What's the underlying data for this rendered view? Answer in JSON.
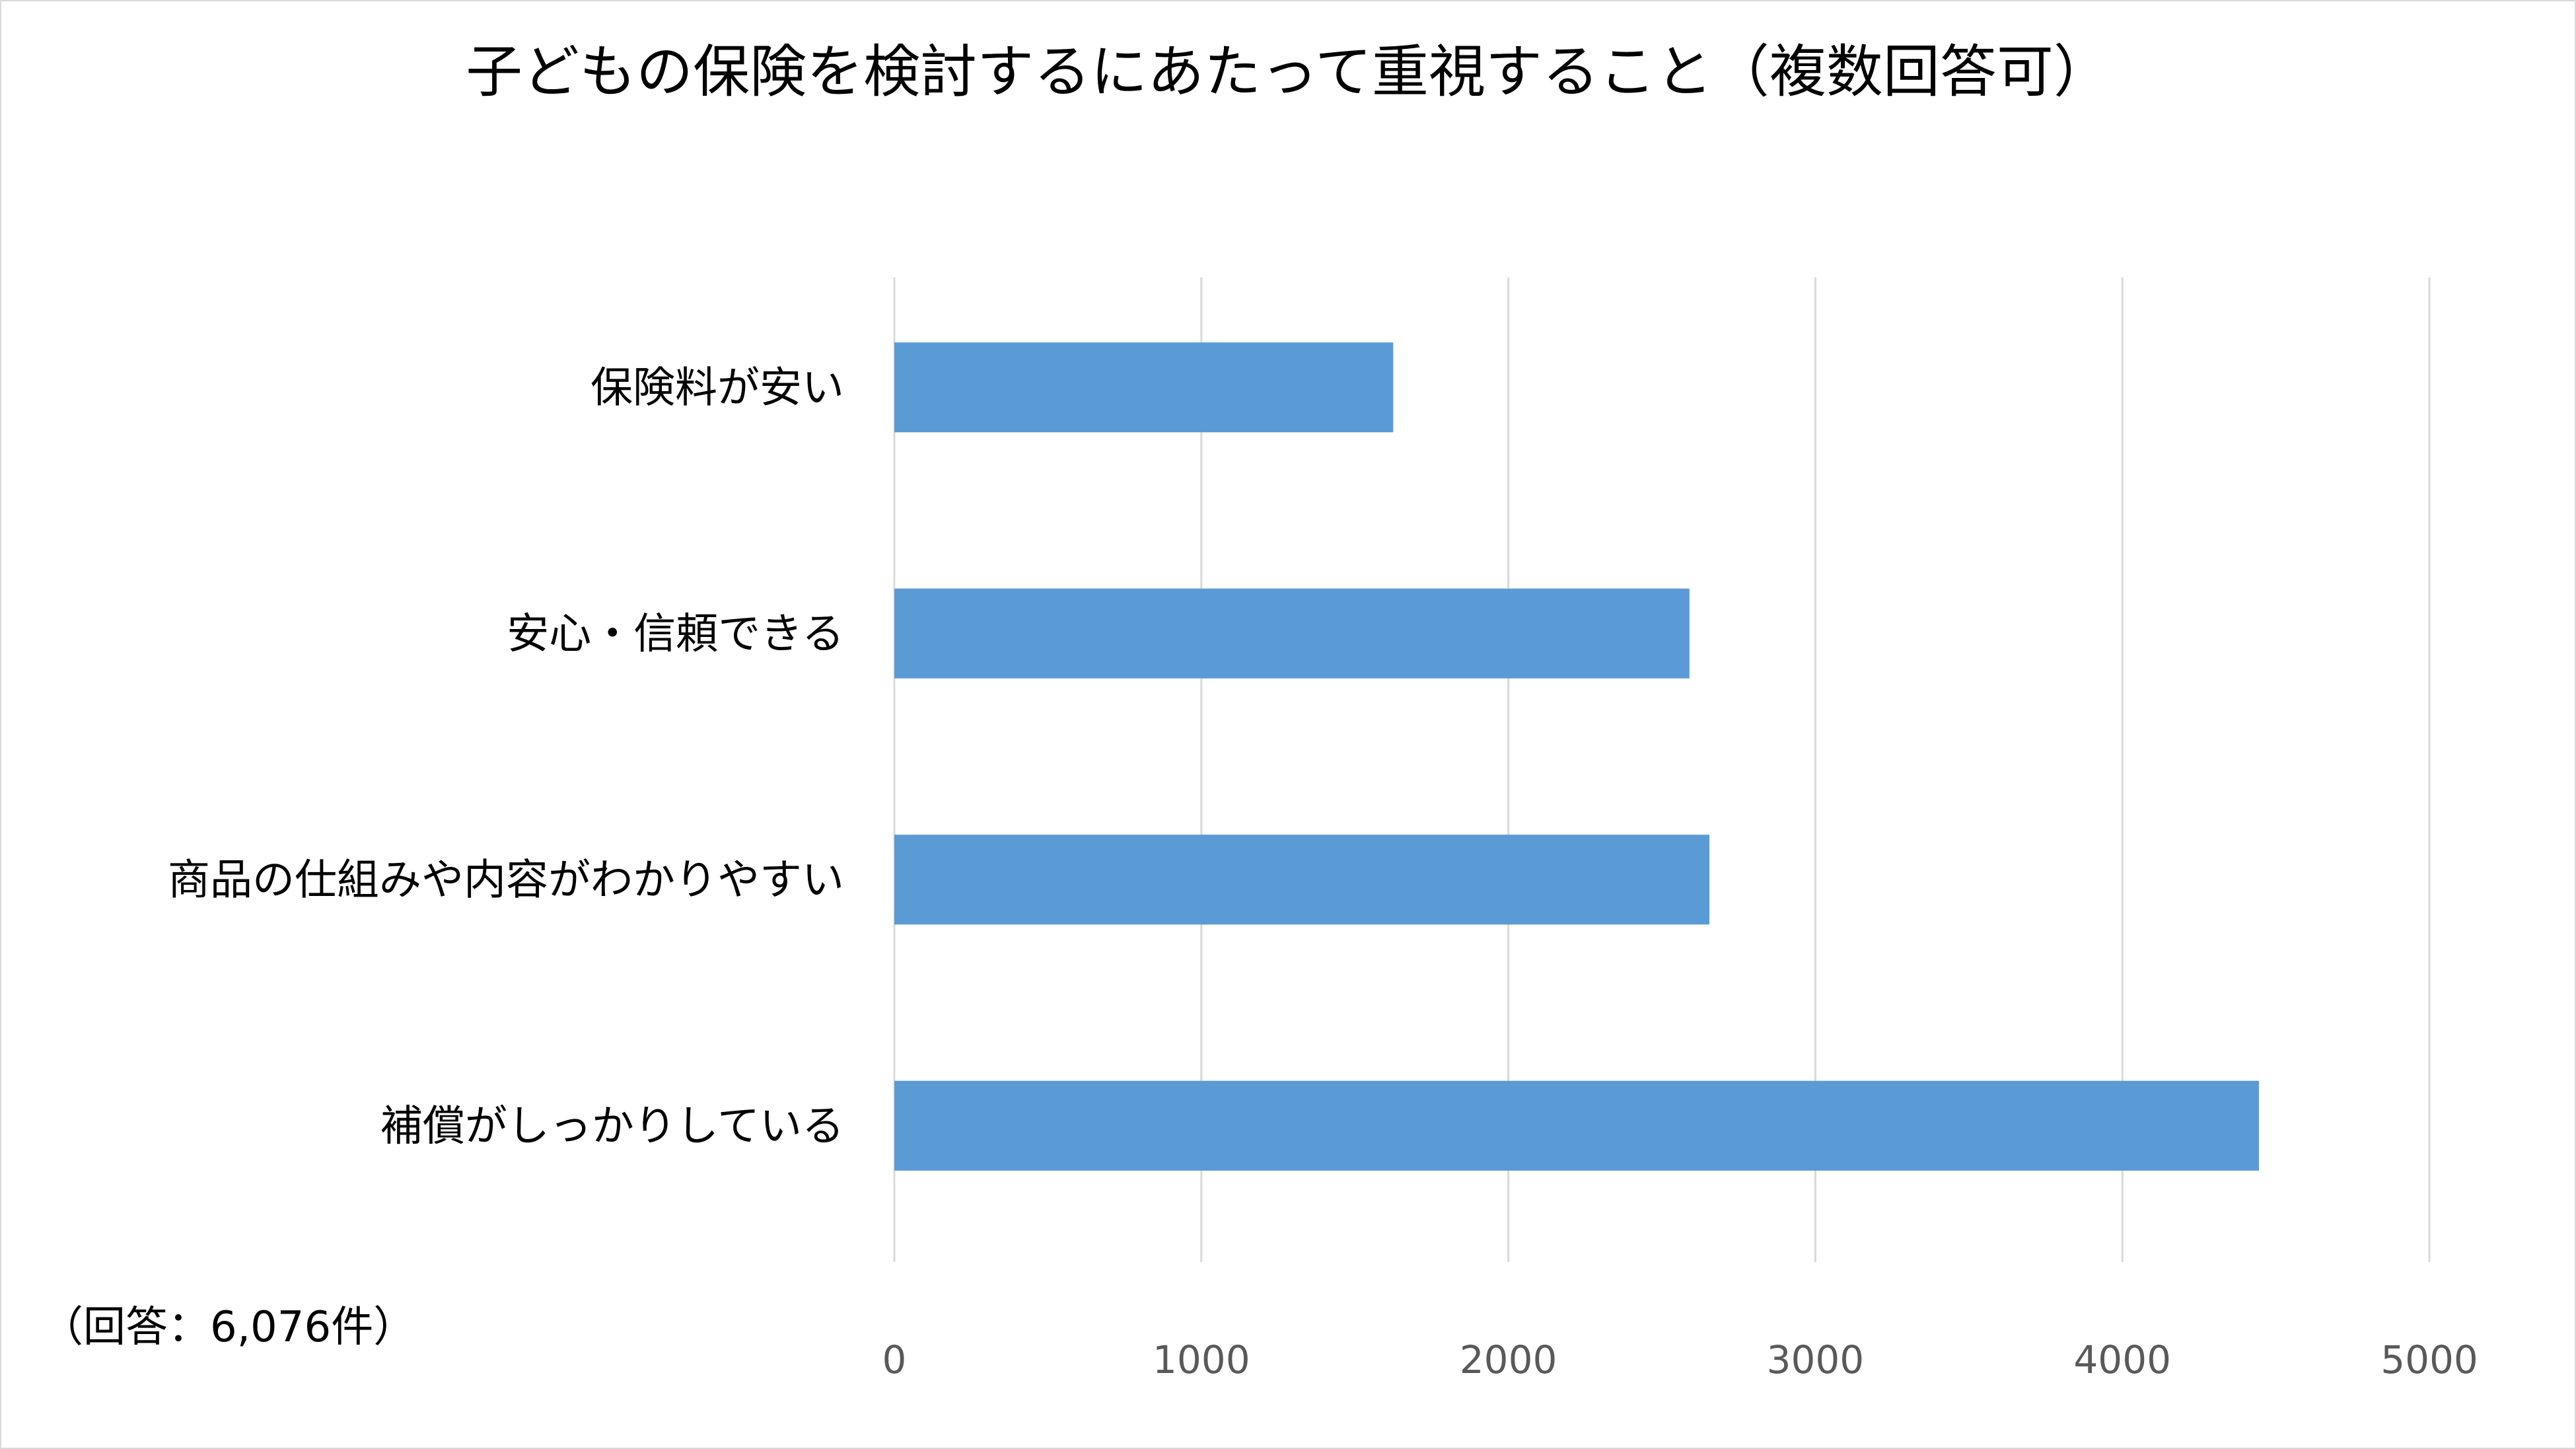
{
  "chart_data": {
    "type": "bar",
    "orientation": "horizontal",
    "title": "子どもの保険を検討するにあたって重視すること（複数回答可）",
    "note": "（回答：6,076件）",
    "categories": [
      "保険料が安い",
      "安心・信頼できる",
      "商品の仕組みや内容がわかりやすい",
      "補償がしっかりしている"
    ],
    "values": [
      1625,
      2590,
      2655,
      4445
    ],
    "xlim": [
      0,
      5000
    ],
    "xticks": [
      "0",
      "1000",
      "2000",
      "3000",
      "4000",
      "5000"
    ],
    "xlabel": "",
    "ylabel": "",
    "grid": true,
    "legend": "none",
    "bar_color": "#5B9BD5",
    "grid_color": "#D9D9D9",
    "text_color": "#000000",
    "tick_color": "#595959"
  }
}
